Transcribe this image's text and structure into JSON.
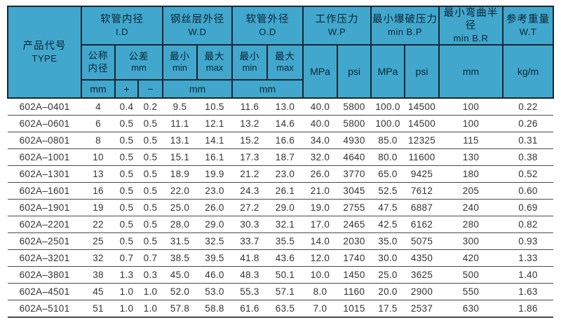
{
  "colors": {
    "header_bg": "#41a7cd",
    "header_border": "#17262f",
    "header_text": "#0d2433",
    "body_text": "#333333",
    "row_line": "#4a4a4a"
  },
  "table": {
    "header": {
      "type_zh": "产品代号",
      "type_en": "TYPE",
      "id_zh": "软管内径",
      "id_en": "I.D",
      "wd_zh": "钢丝层外径",
      "wd_en": "W.D",
      "od_zh": "软管外径",
      "od_en": "O.D",
      "wp_zh": "工作压力",
      "wp_en": "W.P",
      "bp_zh": "最小爆破压力",
      "bp_en": "min B.P",
      "br_zh": "最小弯曲半径",
      "br_en": "min B.R",
      "wt_zh": "参考重量",
      "wt_en": "W.T",
      "nominal_line1": "公称",
      "nominal_line2": "内径",
      "tol_line1": "公差",
      "tol_line2": "mm",
      "min_line1": "最小",
      "min_line2": "min",
      "max_line1": "最大",
      "max_line2": "max",
      "plus": "+",
      "minus": "−",
      "unit_mm": "mm",
      "unit_mpa": "MPa",
      "unit_psi": "psi",
      "unit_kgm": "kg/m"
    },
    "columns": [
      "type",
      "id-nominal",
      "tol-plus",
      "tol-minus",
      "wd-min",
      "wd-max",
      "od-min",
      "od-max",
      "wp-mpa",
      "wp-psi",
      "bp-mpa",
      "bp-psi",
      "br-mm",
      "wt-kgm"
    ],
    "rows": [
      [
        "602A–0401",
        "4",
        "0.4",
        "0.2",
        "9.5",
        "10.5",
        "11.6",
        "13.0",
        "40.0",
        "5800",
        "100.0",
        "14500",
        "100",
        "0.22"
      ],
      [
        "602A–0601",
        "6",
        "0.5",
        "0.5",
        "11.1",
        "12.1",
        "13.2",
        "14.6",
        "40.0",
        "5800",
        "100.0",
        "14500",
        "100",
        "0.26"
      ],
      [
        "602A–0801",
        "8",
        "0.5",
        "0.5",
        "13.1",
        "14.1",
        "15.2",
        "16.6",
        "34.0",
        "4930",
        "85.0",
        "12325",
        "115",
        "0.31"
      ],
      [
        "602A–1001",
        "10",
        "0.5",
        "0.5",
        "15.1",
        "16.1",
        "17.3",
        "18.7",
        "32.0",
        "4640",
        "80.0",
        "11600",
        "130",
        "0.38"
      ],
      [
        "602A–1301",
        "13",
        "0.5",
        "0.5",
        "18.9",
        "19.9",
        "21.2",
        "23.0",
        "26.0",
        "3770",
        "65.0",
        "9425",
        "180",
        "0.52"
      ],
      [
        "602A–1601",
        "16",
        "0.5",
        "0.5",
        "22.0",
        "23.0",
        "24.3",
        "26.1",
        "21.0",
        "3045",
        "52.5",
        "7612",
        "205",
        "0.60"
      ],
      [
        "602A–1901",
        "19",
        "0.5",
        "0.5",
        "25.0",
        "26.0",
        "27.2",
        "29.0",
        "19.0",
        "2755",
        "47.5",
        "6887",
        "240",
        "0.69"
      ],
      [
        "602A–2201",
        "22",
        "0.5",
        "0.5",
        "28.0",
        "29.0",
        "30.3",
        "32.1",
        "17.0",
        "2465",
        "42.5",
        "6162",
        "280",
        "0.82"
      ],
      [
        "602A–2501",
        "25",
        "0.5",
        "0.5",
        "31.5",
        "32.5",
        "33.7",
        "35.5",
        "14.0",
        "2030",
        "35.0",
        "5075",
        "300",
        "0.93"
      ],
      [
        "602A–3201",
        "32",
        "0.7",
        "0.7",
        "38.5",
        "39.5",
        "41.8",
        "43.6",
        "12.0",
        "1740",
        "30.0",
        "4350",
        "420",
        "1.33"
      ],
      [
        "602A–3801",
        "38",
        "1.3",
        "0.3",
        "45.0",
        "46.0",
        "48.3",
        "50.1",
        "10.0",
        "1450",
        "25.0",
        "3625",
        "500",
        "1.40"
      ],
      [
        "602A–4501",
        "45",
        "1.0",
        "1.0",
        "52.0",
        "53.0",
        "55.3",
        "57.1",
        "8.0",
        "1160",
        "20.0",
        "2900",
        "550",
        "1.63"
      ],
      [
        "602A–5101",
        "51",
        "1.0",
        "1.0",
        "57.8",
        "58.8",
        "61.6",
        "63.5",
        "7.0",
        "1015",
        "17.5",
        "2537",
        "630",
        "1.86"
      ]
    ]
  }
}
